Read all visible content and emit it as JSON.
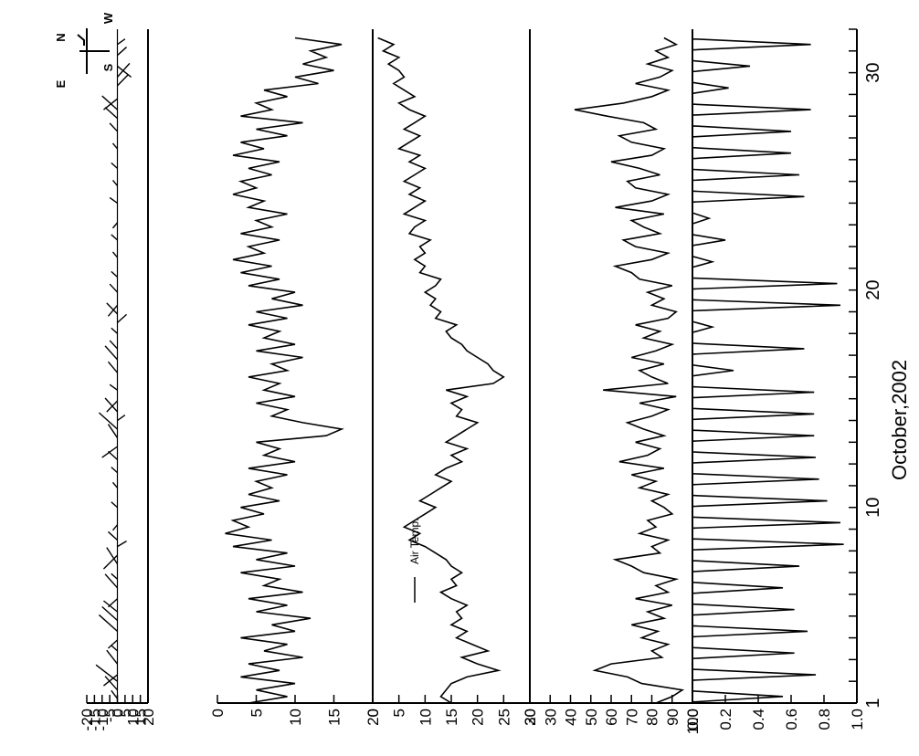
{
  "chart_data": [
    {
      "type": "line",
      "subtype": "wind-vector stick plot",
      "title": "",
      "ylabel": "",
      "ylim": [
        -20,
        20
      ],
      "yticks": [
        -20,
        -15,
        -10,
        -5,
        0,
        5,
        10,
        15,
        20
      ],
      "ytick_labels": [
        "-20",
        "-15",
        "-10",
        "-5",
        "0",
        "5",
        "10",
        "15",
        "20"
      ],
      "xlim": [
        1,
        32
      ],
      "compass": {
        "north": "N",
        "south": "S",
        "east": "E",
        "west": "W"
      },
      "series": [
        {
          "values": [
            [
              1.2,
              -4,
              3
            ],
            [
              1.6,
              -8,
              5
            ],
            [
              2.0,
              -14,
              6
            ],
            [
              2.3,
              -9,
              -4
            ],
            [
              2.8,
              -7,
              5
            ],
            [
              3.4,
              -4,
              2
            ],
            [
              3.9,
              -6,
              -3
            ],
            [
              4.3,
              -12,
              6
            ],
            [
              4.8,
              -10,
              5
            ],
            [
              5.2,
              -9,
              4
            ],
            [
              5.8,
              -6,
              -3
            ],
            [
              6.3,
              -8,
              5
            ],
            [
              6.7,
              -4,
              2
            ],
            [
              7.4,
              -7,
              6
            ],
            [
              7.8,
              -9,
              -5
            ],
            [
              8.2,
              6,
              2
            ],
            [
              8.5,
              -6,
              3
            ],
            [
              9.2,
              -3,
              -2
            ],
            [
              10.0,
              -4,
              2
            ],
            [
              10.9,
              -3,
              2
            ],
            [
              11.6,
              -4,
              2
            ],
            [
              12.2,
              -6,
              3
            ],
            [
              12.8,
              -10,
              -4
            ],
            [
              13.2,
              -6,
              5
            ],
            [
              13.6,
              -12,
              6
            ],
            [
              14.0,
              5,
              2
            ],
            [
              14.4,
              -8,
              5
            ],
            [
              14.9,
              -7,
              -4
            ],
            [
              15.4,
              -5,
              2
            ],
            [
              16.2,
              -6,
              4
            ],
            [
              16.8,
              -8,
              5
            ],
            [
              17.3,
              -5,
              3
            ],
            [
              18.0,
              -4,
              2
            ],
            [
              18.5,
              6,
              3
            ],
            [
              18.9,
              -7,
              4
            ],
            [
              19.3,
              -6,
              -4
            ],
            [
              19.9,
              -5,
              3
            ],
            [
              20.6,
              -4,
              2
            ],
            [
              21.5,
              -3,
              2
            ],
            [
              22.3,
              -4,
              2
            ],
            [
              23.1,
              -3,
              -2
            ],
            [
              24.0,
              -5,
              2
            ],
            [
              24.8,
              -3,
              2
            ],
            [
              25.6,
              -4,
              2
            ],
            [
              26.5,
              -3,
              2
            ],
            [
              27.3,
              -5,
              3
            ],
            [
              27.9,
              -8,
              4
            ],
            [
              28.3,
              -10,
              5
            ],
            [
              28.8,
              -9,
              -4
            ],
            [
              29.4,
              7,
              4
            ],
            [
              29.8,
              8,
              5
            ],
            [
              30.3,
              9,
              -4
            ],
            [
              30.8,
              6,
              3
            ],
            [
              31.3,
              5,
              2
            ]
          ]
        }
      ]
    },
    {
      "type": "line",
      "title": "",
      "ylabel": "",
      "ylim": [
        0,
        20
      ],
      "yticks": [
        0,
        5,
        10,
        15,
        20
      ],
      "ytick_labels": [
        "0",
        "5",
        "10",
        "15",
        "20"
      ],
      "xlim": [
        1,
        32
      ],
      "series": [
        {
          "x": [
            1.0,
            1.3,
            1.6,
            1.9,
            2.2,
            2.5,
            2.8,
            3.1,
            3.4,
            3.7,
            4.0,
            4.3,
            4.6,
            4.9,
            5.2,
            5.5,
            5.8,
            6.1,
            6.4,
            6.7,
            7.0,
            7.3,
            7.6,
            7.9,
            8.2,
            8.5,
            8.8,
            9.1,
            9.4,
            9.7,
            10.0,
            10.3,
            10.6,
            10.9,
            11.2,
            11.5,
            11.8,
            12.1,
            12.4,
            12.7,
            13.0,
            13.3,
            13.6,
            13.9,
            14.2,
            14.5,
            14.8,
            15.1,
            15.4,
            15.7,
            16.0,
            16.3,
            16.6,
            16.9,
            17.2,
            17.5,
            17.8,
            18.1,
            18.4,
            18.7,
            19.0,
            19.3,
            19.6,
            19.9,
            20.2,
            20.5,
            20.8,
            21.1,
            21.4,
            21.7,
            22.0,
            22.3,
            22.6,
            22.9,
            23.2,
            23.5,
            23.8,
            24.1,
            24.4,
            24.7,
            25.0,
            25.3,
            25.6,
            25.9,
            26.2,
            26.5,
            26.8,
            27.1,
            27.4,
            27.7,
            28.0,
            28.3,
            28.6,
            28.9,
            29.2,
            29.5,
            29.8,
            30.1,
            30.4,
            30.7,
            31.0,
            31.3,
            31.6
          ],
          "values": [
            4,
            9,
            5,
            10,
            3,
            8,
            4,
            11,
            6,
            9,
            3,
            10,
            7,
            12,
            5,
            9,
            4,
            11,
            6,
            8,
            3,
            10,
            5,
            9,
            2,
            7,
            1,
            4,
            2,
            6,
            3,
            8,
            4,
            7,
            5,
            9,
            4,
            10,
            6,
            8,
            5,
            14,
            16,
            11,
            7,
            9,
            5,
            10,
            6,
            8,
            4,
            9,
            7,
            11,
            5,
            10,
            6,
            8,
            4,
            9,
            5,
            11,
            7,
            10,
            4,
            8,
            3,
            7,
            2,
            6,
            4,
            8,
            3,
            7,
            5,
            9,
            4,
            6,
            2,
            5,
            3,
            7,
            4,
            8,
            2,
            6,
            3,
            9,
            5,
            11,
            3,
            7,
            5,
            9,
            6,
            13,
            10,
            15,
            11,
            14,
            12,
            16,
            10
          ]
        }
      ]
    },
    {
      "type": "line",
      "title": "",
      "ylabel": "",
      "ylim": [
        0,
        30
      ],
      "yticks": [
        0,
        5,
        10,
        15,
        20,
        25,
        30
      ],
      "ytick_labels": [
        "0",
        "5",
        "10",
        "15",
        "20",
        "25",
        "30"
      ],
      "xlim": [
        1,
        32
      ],
      "legend": {
        "position": "top-right",
        "entries": [
          "Air Temp."
        ]
      },
      "series": [
        {
          "name": "Air Temp.",
          "x": [
            1.0,
            1.3,
            1.6,
            1.9,
            2.2,
            2.5,
            2.8,
            3.1,
            3.4,
            3.7,
            4.0,
            4.3,
            4.6,
            4.9,
            5.2,
            5.5,
            5.8,
            6.1,
            6.4,
            6.7,
            7.0,
            7.3,
            7.6,
            7.9,
            8.2,
            8.5,
            8.8,
            9.1,
            9.4,
            9.7,
            10.0,
            10.3,
            10.6,
            10.9,
            11.2,
            11.5,
            11.8,
            12.1,
            12.4,
            12.7,
            13.0,
            13.3,
            13.6,
            13.9,
            14.2,
            14.5,
            14.8,
            15.1,
            15.4,
            15.7,
            16.0,
            16.3,
            16.6,
            16.9,
            17.2,
            17.5,
            17.8,
            18.1,
            18.4,
            18.7,
            19.0,
            19.3,
            19.6,
            19.9,
            20.2,
            20.5,
            20.8,
            21.1,
            21.4,
            21.7,
            22.0,
            22.3,
            22.6,
            22.9,
            23.2,
            23.5,
            23.8,
            24.1,
            24.4,
            24.7,
            25.0,
            25.3,
            25.6,
            25.9,
            26.2,
            26.5,
            26.8,
            27.1,
            27.4,
            27.7,
            28.0,
            28.3,
            28.6,
            28.9,
            29.2,
            29.5,
            29.8,
            30.1,
            30.4,
            30.7,
            31.0,
            31.3,
            31.6
          ],
          "values": [
            15,
            13,
            14,
            15,
            18,
            24,
            20,
            17,
            22,
            19,
            16,
            18,
            15,
            17,
            16,
            18,
            15,
            13,
            16,
            15,
            17,
            15,
            14,
            12,
            10,
            7,
            9,
            6,
            8,
            10,
            12,
            9,
            11,
            13,
            15,
            12,
            14,
            17,
            15,
            18,
            14,
            16,
            18,
            20,
            16,
            17,
            15,
            18,
            14,
            23,
            25,
            23,
            22,
            20,
            18,
            17,
            15,
            14,
            16,
            12,
            13,
            11,
            12,
            10,
            12,
            13,
            9,
            10,
            8,
            10,
            9,
            11,
            7,
            8,
            10,
            6,
            8,
            10,
            7,
            9,
            6,
            8,
            10,
            7,
            9,
            5,
            7,
            9,
            6,
            8,
            10,
            7,
            5,
            8,
            6,
            4,
            6,
            5,
            3,
            5,
            2,
            4,
            1
          ]
        }
      ]
    },
    {
      "type": "line",
      "title": "",
      "ylabel": "",
      "ylim": [
        20,
        100
      ],
      "yticks": [
        20,
        30,
        40,
        50,
        60,
        70,
        80,
        90,
        100
      ],
      "ytick_labels": [
        "20",
        "30",
        "40",
        "50",
        "60",
        "70",
        "80",
        "90",
        "100"
      ],
      "xlim": [
        1,
        32
      ],
      "series": [
        {
          "x": [
            1.0,
            1.3,
            1.6,
            1.9,
            2.2,
            2.5,
            2.8,
            3.1,
            3.4,
            3.7,
            4.0,
            4.3,
            4.6,
            4.9,
            5.2,
            5.5,
            5.8,
            6.1,
            6.4,
            6.7,
            7.0,
            7.3,
            7.6,
            7.9,
            8.2,
            8.5,
            8.8,
            9.1,
            9.4,
            9.7,
            10.0,
            10.3,
            10.6,
            10.9,
            11.2,
            11.5,
            11.8,
            12.1,
            12.4,
            12.7,
            13.0,
            13.3,
            13.6,
            13.9,
            14.2,
            14.5,
            14.8,
            15.1,
            15.4,
            15.7,
            16.0,
            16.3,
            16.6,
            16.9,
            17.2,
            17.5,
            17.8,
            18.1,
            18.4,
            18.7,
            19.0,
            19.3,
            19.6,
            19.9,
            20.2,
            20.5,
            20.8,
            21.1,
            21.4,
            21.7,
            22.0,
            22.3,
            22.6,
            22.9,
            23.2,
            23.5,
            23.8,
            24.1,
            24.4,
            24.7,
            25.0,
            25.3,
            25.6,
            25.9,
            26.2,
            26.5,
            26.8,
            27.1,
            27.4,
            27.7,
            28.0,
            28.3,
            28.6,
            28.9,
            29.2,
            29.5,
            29.8,
            30.1,
            30.4,
            30.7,
            31.0,
            31.3,
            31.6
          ],
          "values": [
            82,
            90,
            95,
            75,
            68,
            52,
            60,
            85,
            80,
            88,
            75,
            83,
            70,
            86,
            78,
            90,
            72,
            88,
            82,
            92,
            76,
            70,
            62,
            84,
            80,
            88,
            74,
            82,
            78,
            90,
            86,
            80,
            88,
            74,
            82,
            70,
            86,
            64,
            78,
            84,
            72,
            86,
            76,
            68,
            80,
            88,
            74,
            92,
            56,
            88,
            80,
            74,
            86,
            70,
            82,
            90,
            76,
            84,
            72,
            88,
            92,
            80,
            86,
            78,
            90,
            74,
            70,
            62,
            80,
            88,
            72,
            66,
            84,
            76,
            70,
            86,
            62,
            80,
            88,
            72,
            68,
            84,
            74,
            60,
            80,
            86,
            70,
            64,
            82,
            76,
            58,
            42,
            66,
            80,
            88,
            72,
            84,
            90,
            78,
            88,
            82,
            92,
            86
          ]
        }
      ]
    },
    {
      "type": "line",
      "title": "",
      "ylabel": "",
      "ylim": [
        0.0,
        1.0
      ],
      "yticks": [
        0.0,
        0.2,
        0.4,
        0.6,
        0.8,
        1.0
      ],
      "ytick_labels": [
        "0.0",
        "0.2",
        "0.4",
        "0.6",
        "0.8",
        "1.0"
      ],
      "xlabel": "October,2002",
      "xticks": [
        1,
        10,
        20,
        30
      ],
      "xtick_labels": [
        "1",
        "10",
        "20",
        "30"
      ],
      "xlim": [
        1,
        32
      ],
      "series": [
        {
          "values": [
            [
              1.3,
              0.55
            ],
            [
              2.3,
              0.75
            ],
            [
              3.3,
              0.62
            ],
            [
              4.3,
              0.7
            ],
            [
              5.3,
              0.62
            ],
            [
              6.3,
              0.55
            ],
            [
              7.3,
              0.65
            ],
            [
              8.3,
              0.92
            ],
            [
              9.3,
              0.9
            ],
            [
              10.3,
              0.82
            ],
            [
              11.3,
              0.77
            ],
            [
              12.3,
              0.75
            ],
            [
              13.3,
              0.74
            ],
            [
              14.3,
              0.74
            ],
            [
              15.3,
              0.74
            ],
            [
              16.3,
              0.25
            ],
            [
              17.3,
              0.68
            ],
            [
              18.3,
              0.12
            ],
            [
              19.3,
              0.9
            ],
            [
              20.3,
              0.88
            ],
            [
              21.3,
              0.12
            ],
            [
              22.3,
              0.2
            ],
            [
              23.3,
              0.1
            ],
            [
              24.3,
              0.68
            ],
            [
              25.3,
              0.65
            ],
            [
              26.3,
              0.6
            ],
            [
              27.3,
              0.6
            ],
            [
              28.3,
              0.72
            ],
            [
              29.3,
              0.22
            ],
            [
              30.3,
              0.35
            ],
            [
              31.3,
              0.72
            ]
          ]
        }
      ]
    }
  ]
}
